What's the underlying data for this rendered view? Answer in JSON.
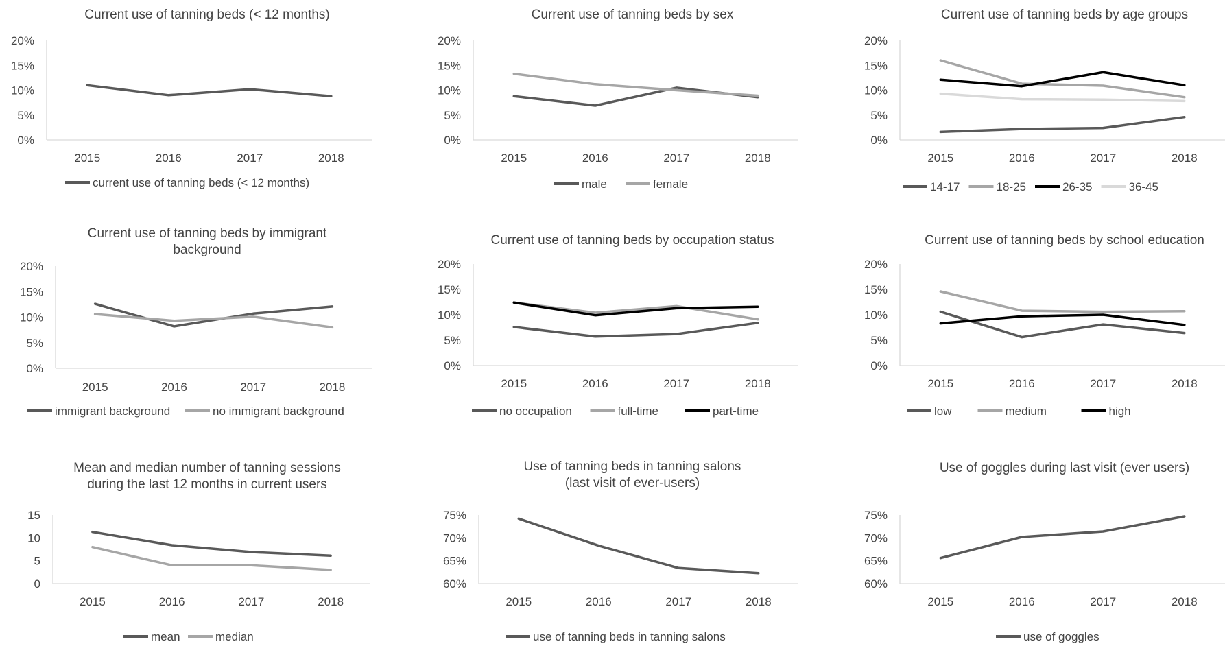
{
  "colors": {
    "dark_gray": "#595959",
    "light_gray": "#a6a6a6",
    "black": "#000000",
    "very_light_gray": "#d9d9d9",
    "axis": "#d9d9d9",
    "text": "#444444"
  },
  "chart_data": [
    {
      "type": "line",
      "title": [
        "Current use of tanning beds (< 12 months)"
      ],
      "categories": [
        "2015",
        "2016",
        "2017",
        "2018"
      ],
      "ylim": [
        0,
        20
      ],
      "yticks": [
        "20%",
        "15%",
        "10%",
        "5%",
        "0%"
      ],
      "legend": "bottom",
      "series": [
        {
          "name": "current use of tanning beds (< 12 months)",
          "color": "#595959",
          "values": [
            11,
            9,
            10.2,
            8.8
          ]
        }
      ]
    },
    {
      "type": "line",
      "title": [
        "Current use of tanning beds by sex"
      ],
      "categories": [
        "2015",
        "2016",
        "2017",
        "2018"
      ],
      "ylim": [
        0,
        20
      ],
      "yticks": [
        "20%",
        "15%",
        "10%",
        "5%",
        "0%"
      ],
      "legend": "bottom",
      "series": [
        {
          "name": "male",
          "color": "#595959",
          "values": [
            8.8,
            6.9,
            10.5,
            8.6
          ]
        },
        {
          "name": "female",
          "color": "#a6a6a6",
          "values": [
            13.3,
            11.2,
            10,
            8.9
          ]
        }
      ]
    },
    {
      "type": "line",
      "title": [
        "Current use of tanning beds by age groups"
      ],
      "categories": [
        "2015",
        "2016",
        "2017",
        "2018"
      ],
      "ylim": [
        0,
        20
      ],
      "yticks": [
        "20%",
        "15%",
        "10%",
        "5%",
        "0%"
      ],
      "legend": "bottom",
      "series": [
        {
          "name": "14-17",
          "color": "#595959",
          "values": [
            1.6,
            2.2,
            2.4,
            4.6
          ]
        },
        {
          "name": "18-25",
          "color": "#a6a6a6",
          "values": [
            16,
            11.3,
            10.9,
            8.6
          ]
        },
        {
          "name": "26-35",
          "color": "#000000",
          "values": [
            12.1,
            10.8,
            13.6,
            11
          ]
        },
        {
          "name": "36-45",
          "color": "#d9d9d9",
          "values": [
            9.3,
            8.2,
            8.1,
            7.8
          ]
        }
      ]
    },
    {
      "type": "line",
      "title": [
        "Current use of tanning beds by immigrant",
        "background"
      ],
      "categories": [
        "2015",
        "2016",
        "2017",
        "2018"
      ],
      "ylim": [
        0,
        20
      ],
      "yticks": [
        "20%",
        "15%",
        "10%",
        "5%",
        "0%"
      ],
      "legend": "bottom",
      "series": [
        {
          "name": "immigrant background",
          "color": "#595959",
          "values": [
            12.6,
            8.2,
            10.7,
            12.1
          ]
        },
        {
          "name": "no immigrant background",
          "color": "#a6a6a6",
          "values": [
            10.6,
            9.3,
            10.1,
            8
          ]
        }
      ]
    },
    {
      "type": "line",
      "title": [
        "Current use of tanning beds by occupation status"
      ],
      "categories": [
        "2015",
        "2016",
        "2017",
        "2018"
      ],
      "ylim": [
        0,
        20
      ],
      "yticks": [
        "20%",
        "15%",
        "10%",
        "5%",
        "0%"
      ],
      "legend": "bottom",
      "series": [
        {
          "name": "no occupation",
          "color": "#595959",
          "values": [
            7.6,
            5.7,
            6.2,
            8.4
          ]
        },
        {
          "name": "full-time",
          "color": "#a6a6a6",
          "values": [
            12.4,
            10.4,
            11.7,
            9.1
          ]
        },
        {
          "name": "part-time",
          "color": "#000000",
          "values": [
            12.4,
            9.9,
            11.3,
            11.6
          ]
        }
      ]
    },
    {
      "type": "line",
      "title": [
        "Current use of tanning beds by school education"
      ],
      "categories": [
        "2015",
        "2016",
        "2017",
        "2018"
      ],
      "ylim": [
        0,
        20
      ],
      "yticks": [
        "20%",
        "15%",
        "10%",
        "5%",
        "0%"
      ],
      "legend": "bottom",
      "series": [
        {
          "name": "low",
          "color": "#595959",
          "values": [
            10.6,
            5.6,
            8.1,
            6.4
          ]
        },
        {
          "name": "medium",
          "color": "#a6a6a6",
          "values": [
            14.6,
            10.8,
            10.6,
            10.7
          ]
        },
        {
          "name": "high",
          "color": "#000000",
          "values": [
            8.3,
            9.7,
            10,
            8
          ]
        }
      ]
    },
    {
      "type": "line",
      "title": [
        "Mean and median number of tanning sessions",
        "during the last 12 months in current users"
      ],
      "categories": [
        "2015",
        "2016",
        "2017",
        "2018"
      ],
      "ylim": [
        0,
        15
      ],
      "yticks": [
        "15",
        "10",
        "5",
        "0"
      ],
      "legend": "bottom",
      "series": [
        {
          "name": "mean",
          "color": "#595959",
          "values": [
            11.3,
            8.4,
            6.9,
            6.1
          ]
        },
        {
          "name": "median",
          "color": "#a6a6a6",
          "values": [
            8,
            4,
            4,
            3
          ]
        }
      ]
    },
    {
      "type": "line",
      "title": [
        "Use of tanning beds in tanning salons",
        "(last visit of ever-users)"
      ],
      "categories": [
        "2015",
        "2016",
        "2017",
        "2018"
      ],
      "ylim": [
        60,
        75
      ],
      "yticks": [
        "75%",
        "70%",
        "65%",
        "60%"
      ],
      "legend": "bottom",
      "series": [
        {
          "name": "use of tanning beds in tanning salons",
          "color": "#595959",
          "values": [
            74.2,
            68.3,
            63.4,
            62.3
          ]
        }
      ]
    },
    {
      "type": "line",
      "title": [
        "Use of goggles during last visit (ever users)"
      ],
      "categories": [
        "2015",
        "2016",
        "2017",
        "2018"
      ],
      "ylim": [
        60,
        75
      ],
      "yticks": [
        "75%",
        "70%",
        "65%",
        "60%"
      ],
      "legend": "bottom",
      "series": [
        {
          "name": "use of goggles",
          "color": "#595959",
          "values": [
            65.6,
            70.2,
            71.4,
            74.7
          ]
        }
      ]
    }
  ]
}
